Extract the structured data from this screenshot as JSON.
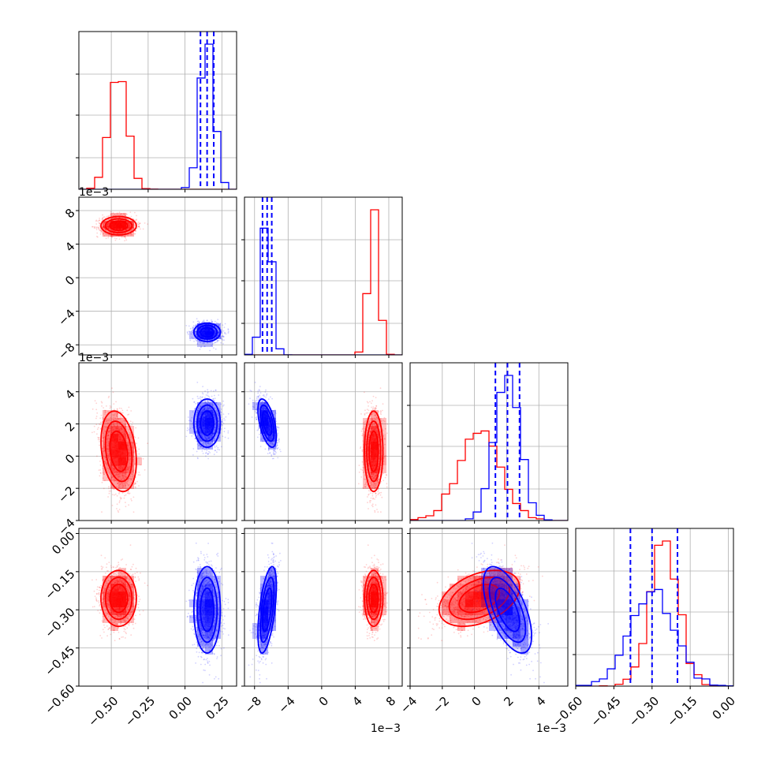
{
  "chart_data": {
    "type": "corner",
    "colors": {
      "series_a": "#ff0000",
      "series_b": "#0000ff",
      "grid": "#b0b0b0"
    },
    "parameters": [
      {
        "range": [
          -0.72,
          0.35
        ],
        "ticks": [
          -0.5,
          -0.25,
          0.0,
          0.25
        ],
        "tick_labels": [
          "−0.50",
          "−0.25",
          "0.00",
          "0.25"
        ],
        "offset": ""
      },
      {
        "range": [
          -9.2,
          9.6
        ],
        "ticks": [
          -8,
          -4,
          0,
          4,
          8
        ],
        "tick_labels": [
          "−8",
          "−4",
          "0",
          "4",
          "8"
        ],
        "offset": "1e−3"
      },
      {
        "range": [
          -4.0,
          5.8
        ],
        "ticks": [
          -4,
          -2,
          0,
          2,
          4
        ],
        "tick_labels": [
          "−4",
          "−2",
          "0",
          "2",
          "4"
        ],
        "offset": "1e−3"
      },
      {
        "range": [
          -0.6,
          0.02
        ],
        "ticks": [
          -0.6,
          -0.45,
          -0.3,
          -0.15,
          0.0
        ],
        "tick_labels": [
          "−0.60",
          "−0.45",
          "−0.30",
          "−0.15",
          "0.00"
        ],
        "offset": ""
      }
    ],
    "series_a_samples": {
      "mean": [
        -0.45,
        6.2,
        0.3,
        -0.255
      ],
      "std": [
        0.06,
        0.55,
        1.25,
        0.055
      ],
      "corr": [
        [
          0,
          2,
          -0.25
        ],
        [
          2,
          3,
          0.4
        ]
      ]
    },
    "series_b_samples": {
      "mean": [
        0.15,
        -6.5,
        2.05,
        -0.3
      ],
      "std": [
        0.045,
        0.55,
        0.75,
        0.085
      ],
      "corr": [
        [
          1,
          2,
          -0.55
        ],
        [
          1,
          3,
          0.55
        ],
        [
          2,
          3,
          -0.6
        ]
      ]
    },
    "quantile_lines_b": [
      [
        0.105,
        0.15,
        0.195
      ],
      [
        -7.05,
        -6.5,
        -5.95
      ],
      [
        1.3,
        2.05,
        2.8
      ],
      [
        -0.385,
        -0.3,
        -0.2
      ]
    ]
  }
}
